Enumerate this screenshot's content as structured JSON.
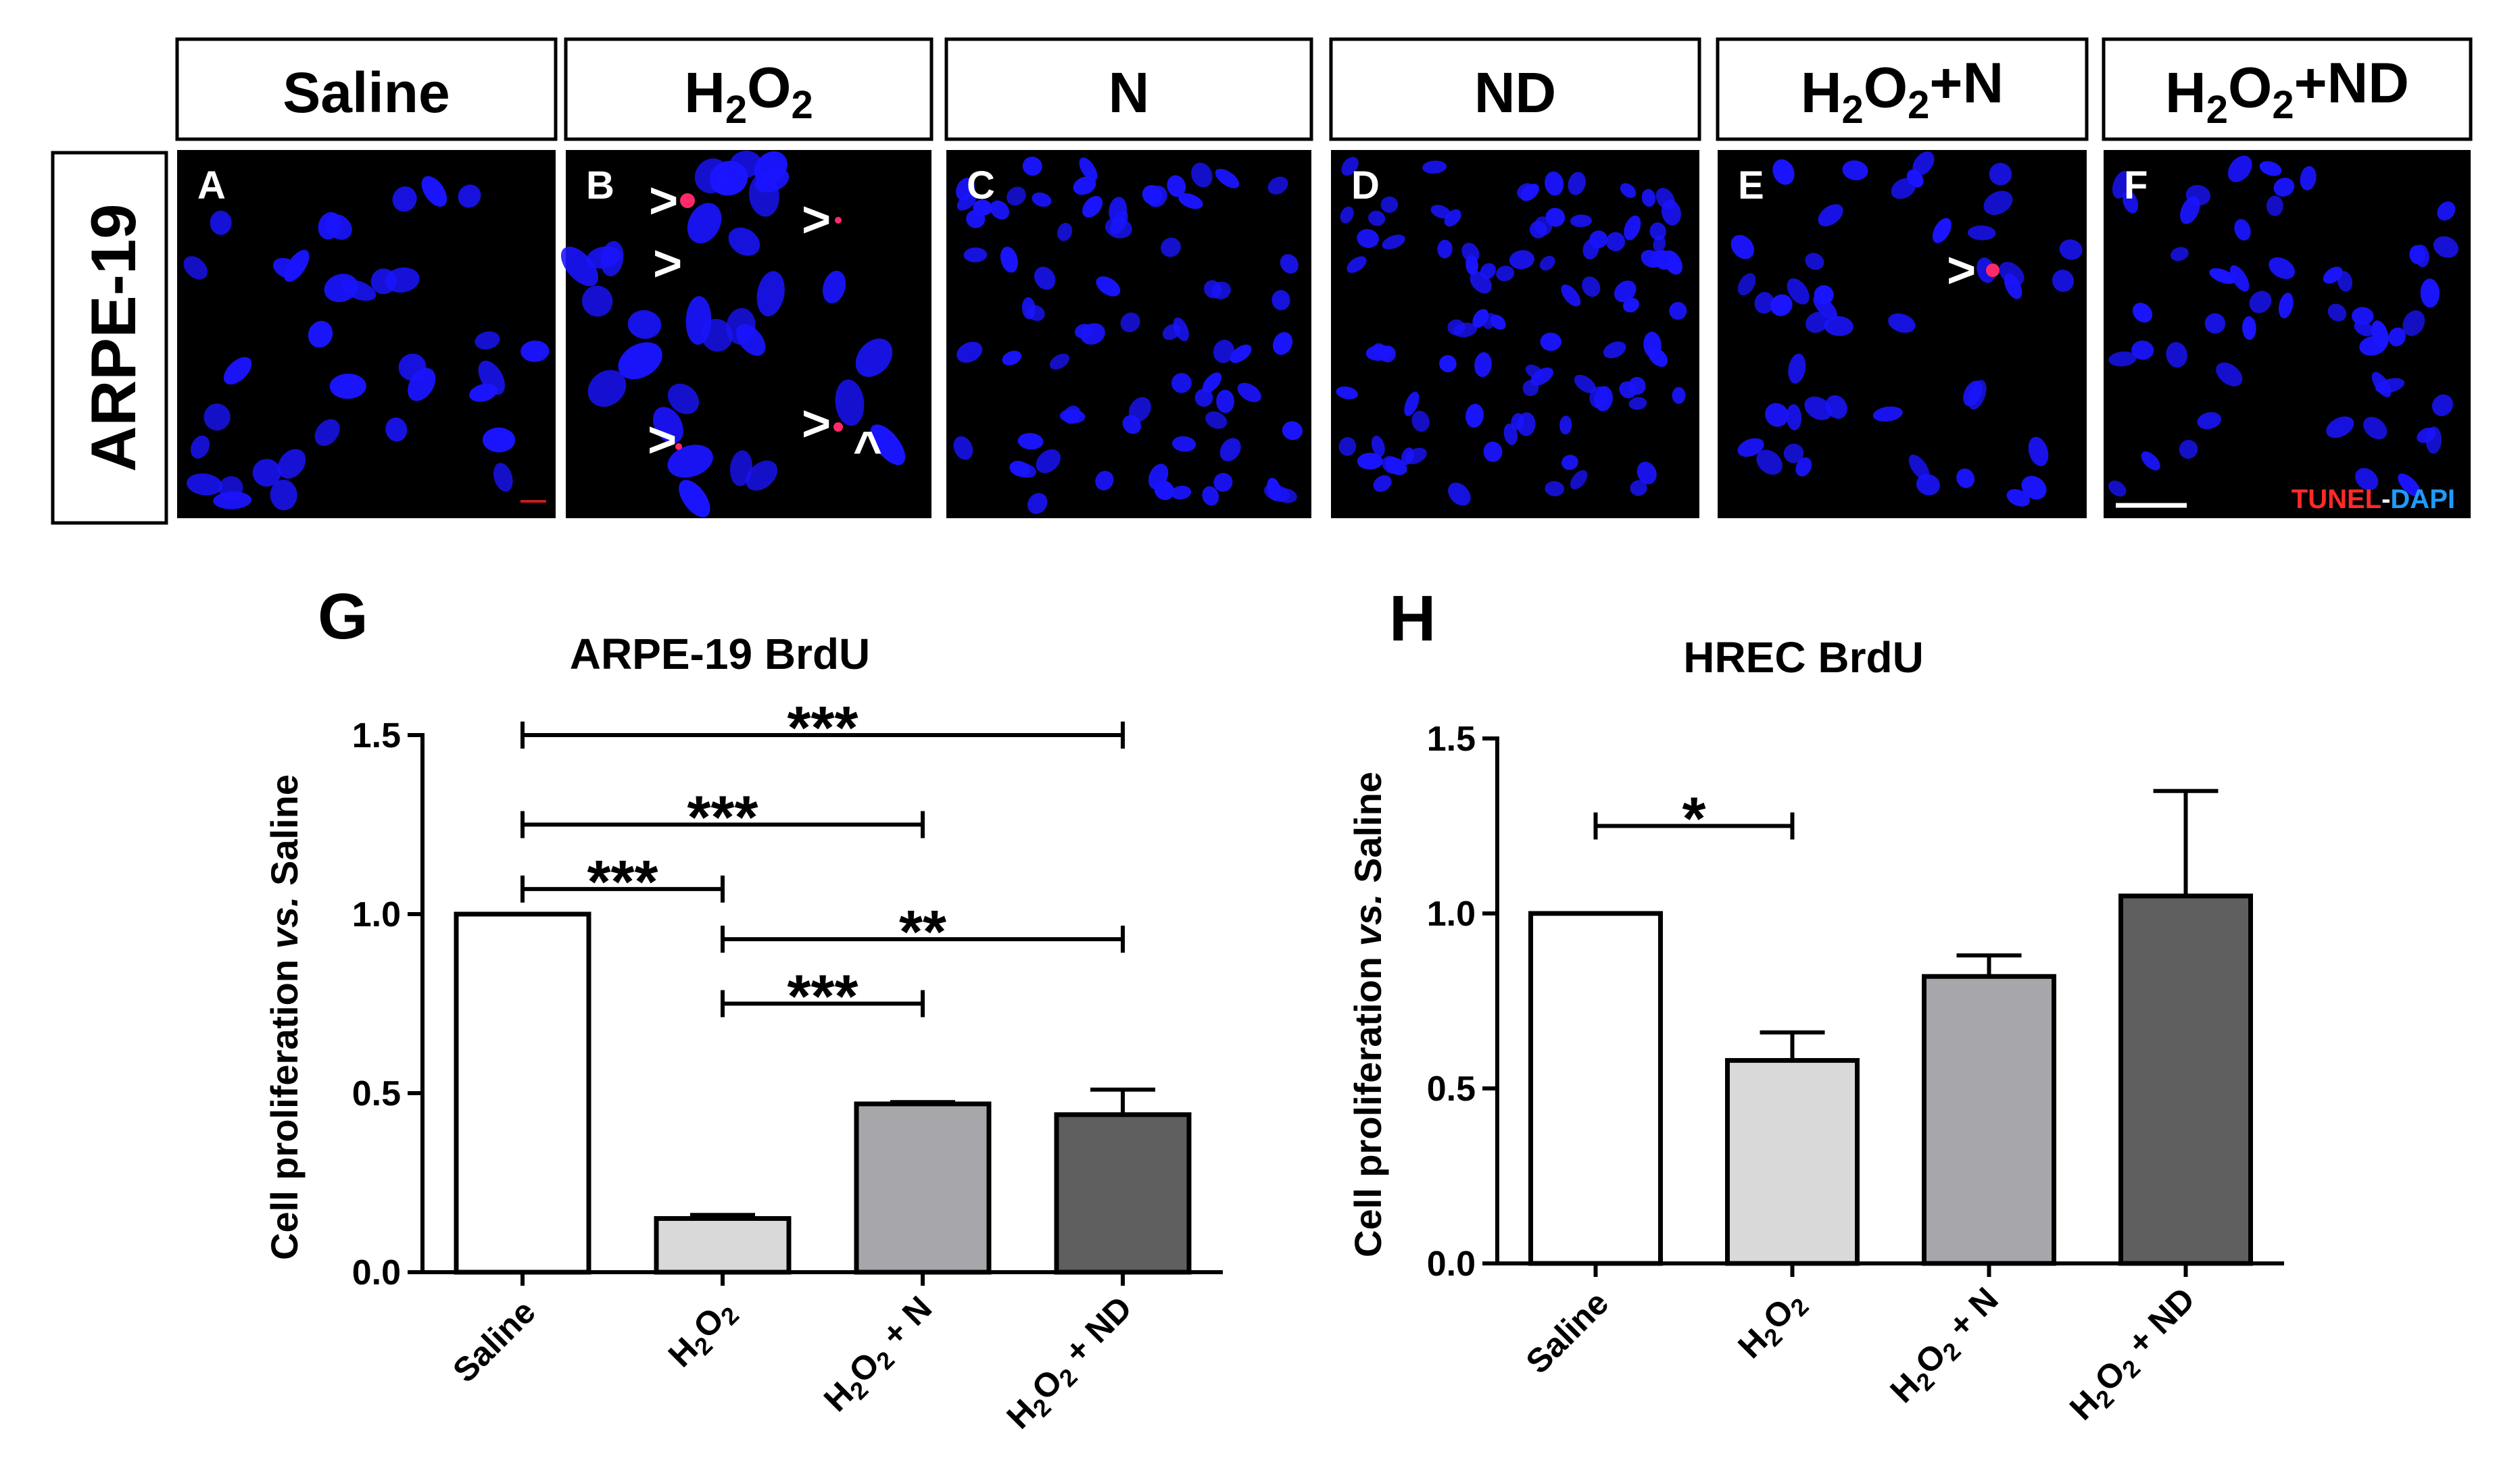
{
  "micrograph_headers": [
    "Saline",
    "H2O2",
    "N",
    "ND",
    "H2O2+N",
    "H2O2+ND"
  ],
  "row_label": "ARPE-19",
  "panel_letters": [
    "A",
    "B",
    "C",
    "D",
    "E",
    "F"
  ],
  "legend": {
    "tunel": "TUNEL",
    "separator": "-",
    "dapi": "DAPI",
    "tunel_color": "#ff2a2a",
    "dapi_color": "#1e9bff"
  },
  "arrow_glyphs": {
    "right": ">",
    "up": "^"
  },
  "colors": {
    "nucleus": "#1a14ff",
    "apoptotic": "#ff2a6a",
    "background": "#000000"
  },
  "chart_data": [
    {
      "letter": "G",
      "type": "bar",
      "title": "ARPE-19 BrdU",
      "ylabel_main": "Cell proliferation",
      "ylabel_italic": "vs.",
      "ylabel_end": "Saline",
      "categories": [
        "Saline",
        "H2O2",
        "H2O2 + N",
        "H2O2 + ND"
      ],
      "values": [
        1.0,
        0.15,
        0.47,
        0.44
      ],
      "errors": [
        0.0,
        0.01,
        0.005,
        0.07
      ],
      "bar_colors": [
        "#ffffff",
        "#d9d9d9",
        "#a6a6ab",
        "#5f5f5f"
      ],
      "ylim": [
        0,
        1.5
      ],
      "yticks": [
        "0.0",
        "0.5",
        "1.0",
        "1.5"
      ],
      "significance": [
        {
          "from": 0,
          "to": 3,
          "y": 1.5,
          "label": "***"
        },
        {
          "from": 0,
          "to": 2,
          "y": 1.25,
          "label": "***"
        },
        {
          "from": 0,
          "to": 1,
          "y": 1.07,
          "label": "***"
        },
        {
          "from": 1,
          "to": 3,
          "y": 0.93,
          "label": "**"
        },
        {
          "from": 1,
          "to": 2,
          "y": 0.75,
          "label": "***"
        }
      ]
    },
    {
      "letter": "H",
      "type": "bar",
      "title": "HREC BrdU",
      "ylabel_main": "Cell proliferation",
      "ylabel_italic": "vs.",
      "ylabel_end": "Saline",
      "categories": [
        "Saline",
        "H2O2",
        "H2O2 + N",
        "H2O2 + ND"
      ],
      "values": [
        1.0,
        0.58,
        0.82,
        1.05
      ],
      "errors": [
        0.0,
        0.08,
        0.06,
        0.3
      ],
      "bar_colors": [
        "#ffffff",
        "#d9d9d9",
        "#a6a6ab",
        "#5f5f5f"
      ],
      "ylim": [
        0,
        1.5
      ],
      "yticks": [
        "0.0",
        "0.5",
        "1.0",
        "1.5"
      ],
      "significance": [
        {
          "from": 0,
          "to": 1,
          "y": 1.25,
          "label": "*"
        }
      ]
    }
  ]
}
